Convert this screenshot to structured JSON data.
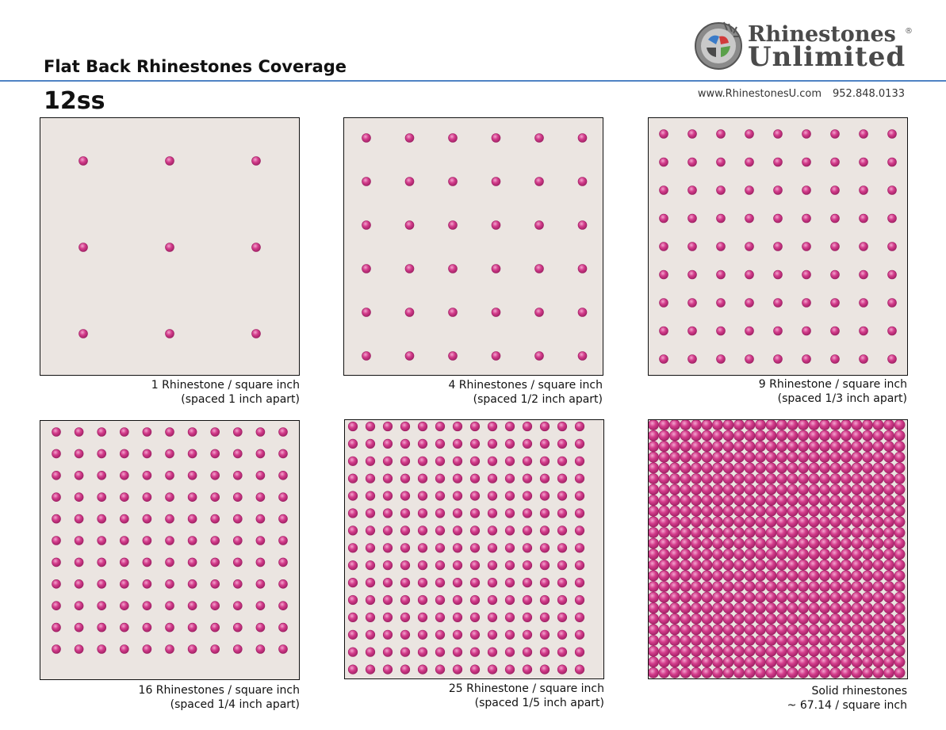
{
  "header": {
    "title": "Flat Back Rhinestones Coverage",
    "stone_size": "12ss",
    "website": "www.RhinestonesU.com",
    "phone": "952.848.0133"
  },
  "logo": {
    "line1": "Rhinestones",
    "line2": "Unlimited",
    "registered": "®"
  },
  "colors": {
    "rule": "#4f83c4",
    "panel_background": "#ebe5e1",
    "stone": "#d43d8c",
    "stone_dark": "#9e1f63",
    "stone_highlight": "#f3a6cf"
  },
  "panels": [
    {
      "id": "p1",
      "stones_per_row": 3,
      "rows": 3,
      "caption_line1": "1 Rhinestone / square inch",
      "caption_line2": "(spaced 1 inch apart)"
    },
    {
      "id": "p2",
      "stones_per_row": 6,
      "rows": 6,
      "caption_line1": "4 Rhinestones / square inch",
      "caption_line2": "(spaced 1/2 inch apart)"
    },
    {
      "id": "p3",
      "stones_per_row": 9,
      "rows": 9,
      "caption_line1": "9 Rhinestone / square inch",
      "caption_line2": "(spaced 1/3 inch apart)"
    },
    {
      "id": "p4",
      "stones_per_row": 11,
      "rows": 11,
      "caption_line1": "16 Rhinestones / square inch",
      "caption_line2": "(spaced 1/4 inch apart)"
    },
    {
      "id": "p5",
      "stones_per_row": 14,
      "rows": 15,
      "caption_line1": "25 Rhinestone / square inch",
      "caption_line2": "(spaced 1/5 inch apart)"
    },
    {
      "id": "p6",
      "stones_per_row": 24,
      "rows": 24,
      "caption_line1": "Solid rhinestones",
      "caption_line2": "~ 67.14 / square inch"
    }
  ]
}
